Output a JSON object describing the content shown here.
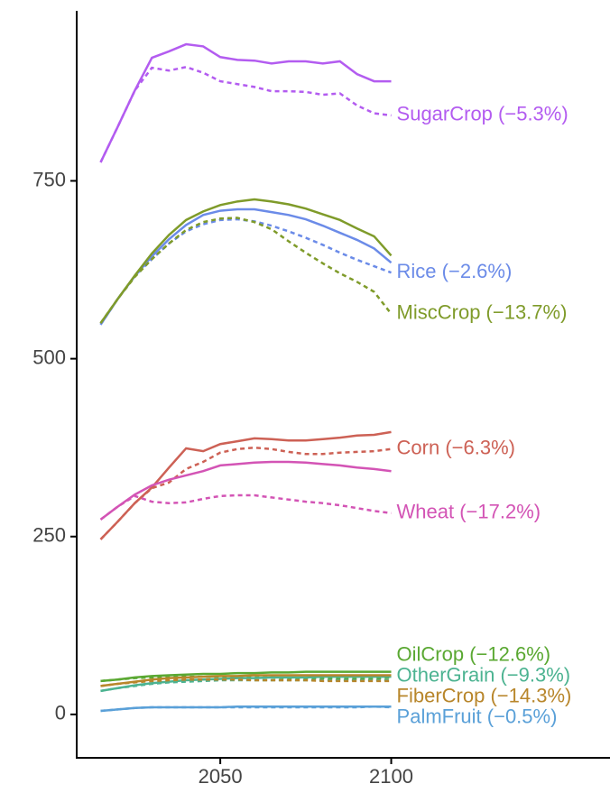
{
  "chart_data": {
    "type": "line",
    "x": [
      2015,
      2020,
      2025,
      2030,
      2035,
      2040,
      2045,
      2050,
      2055,
      2060,
      2065,
      2070,
      2075,
      2080,
      2085,
      2090,
      2095,
      2100
    ],
    "xlim": [
      2008,
      2164
    ],
    "xticks": [
      2050,
      2100
    ],
    "ylim": [
      -61,
      989
    ],
    "yticks": [
      0,
      250,
      500,
      750
    ],
    "series": [
      {
        "name": "SugarCrop (−5.3%)",
        "color": "#b35cf0",
        "values": [
          776,
          826,
          877,
          923,
          932,
          942,
          939,
          924,
          920,
          919,
          915,
          918,
          918,
          915,
          918,
          900,
          890,
          890
        ],
        "dashed_values": [
          776,
          826,
          877,
          909,
          905,
          910,
          902,
          890,
          886,
          882,
          876,
          876,
          875,
          871,
          873,
          856,
          845,
          842
        ]
      },
      {
        "name": "Rice (−2.6%)",
        "color": "#6b8be8",
        "values": [
          548,
          584,
          616,
          644,
          668,
          688,
          702,
          708,
          710,
          710,
          706,
          702,
          696,
          687,
          677,
          667,
          655,
          635
        ],
        "dashed_values": [
          548,
          584,
          616,
          640,
          662,
          679,
          689,
          695,
          696,
          693,
          687,
          679,
          670,
          660,
          649,
          639,
          630,
          621
        ]
      },
      {
        "name": "MiscCrop (−13.7%)",
        "color": "#7f9b2a",
        "values": [
          550,
          584,
          617,
          648,
          674,
          695,
          707,
          716,
          721,
          724,
          721,
          717,
          711,
          703,
          695,
          683,
          672,
          645
        ],
        "dashed_values": [
          550,
          584,
          615,
          640,
          662,
          681,
          692,
          697,
          698,
          692,
          682,
          665,
          649,
          634,
          620,
          608,
          594,
          563
        ]
      },
      {
        "name": "Corn (−6.3%)",
        "color": "#cd6155",
        "values": [
          246,
          271,
          297,
          319,
          347,
          374,
          370,
          380,
          384,
          388,
          387,
          385,
          385,
          387,
          389,
          392,
          393,
          397
        ],
        "dashed_values": [
          246,
          271,
          297,
          318,
          326,
          345,
          355,
          368,
          373,
          375,
          373,
          369,
          366,
          366,
          368,
          369,
          370,
          373
        ]
      },
      {
        "name": "Wheat (−17.2%)",
        "color": "#d354b5",
        "values": [
          274,
          292,
          309,
          322,
          330,
          336,
          342,
          350,
          352,
          354,
          355,
          355,
          354,
          352,
          350,
          347,
          345,
          342
        ],
        "dashed_values": [
          274,
          292,
          307,
          299,
          297,
          298,
          303,
          307,
          308,
          308,
          305,
          302,
          299,
          297,
          294,
          290,
          286,
          283
        ]
      },
      {
        "name": "OilCrop (−12.6%)",
        "color": "#5aa832",
        "values": [
          47,
          49,
          52,
          54,
          55,
          56,
          57,
          57,
          58,
          58,
          59,
          59,
          60,
          60,
          60,
          60,
          60,
          60
        ],
        "dashed_values": [
          47,
          49,
          51,
          52,
          52,
          53,
          53,
          53,
          53,
          52,
          52,
          51,
          51,
          51,
          50,
          50,
          50,
          52
        ]
      },
      {
        "name": "OtherGrain (−9.3%)",
        "color": "#4cb391",
        "values": [
          33,
          37,
          41,
          44,
          46,
          48,
          49,
          50,
          51,
          51,
          52,
          52,
          52,
          53,
          53,
          53,
          53,
          53
        ],
        "dashed_values": [
          33,
          37,
          40,
          43,
          45,
          46,
          47,
          48,
          48,
          48,
          48,
          48,
          48,
          48,
          48,
          48,
          48,
          48
        ]
      },
      {
        "name": "FiberCrop (−14.3%)",
        "color": "#b8862b",
        "values": [
          40,
          43,
          46,
          49,
          51,
          52,
          53,
          54,
          54,
          55,
          55,
          55,
          55,
          55,
          55,
          55,
          55,
          55
        ],
        "dashed_values": [
          40,
          43,
          45,
          47,
          48,
          49,
          49,
          49,
          49,
          48,
          48,
          48,
          48,
          47,
          47,
          47,
          47,
          47
        ]
      },
      {
        "name": "PalmFruit (−0.5%)",
        "color": "#5aa0d8",
        "values": [
          5,
          7,
          9,
          10,
          10,
          10,
          10,
          10,
          11,
          11,
          11,
          11,
          11,
          11,
          11,
          11,
          11,
          11
        ],
        "dashed_values": [
          5,
          7,
          9,
          10,
          10,
          10,
          10,
          10,
          10,
          10,
          10,
          10,
          10,
          10,
          10,
          10,
          11,
          10
        ]
      }
    ]
  }
}
